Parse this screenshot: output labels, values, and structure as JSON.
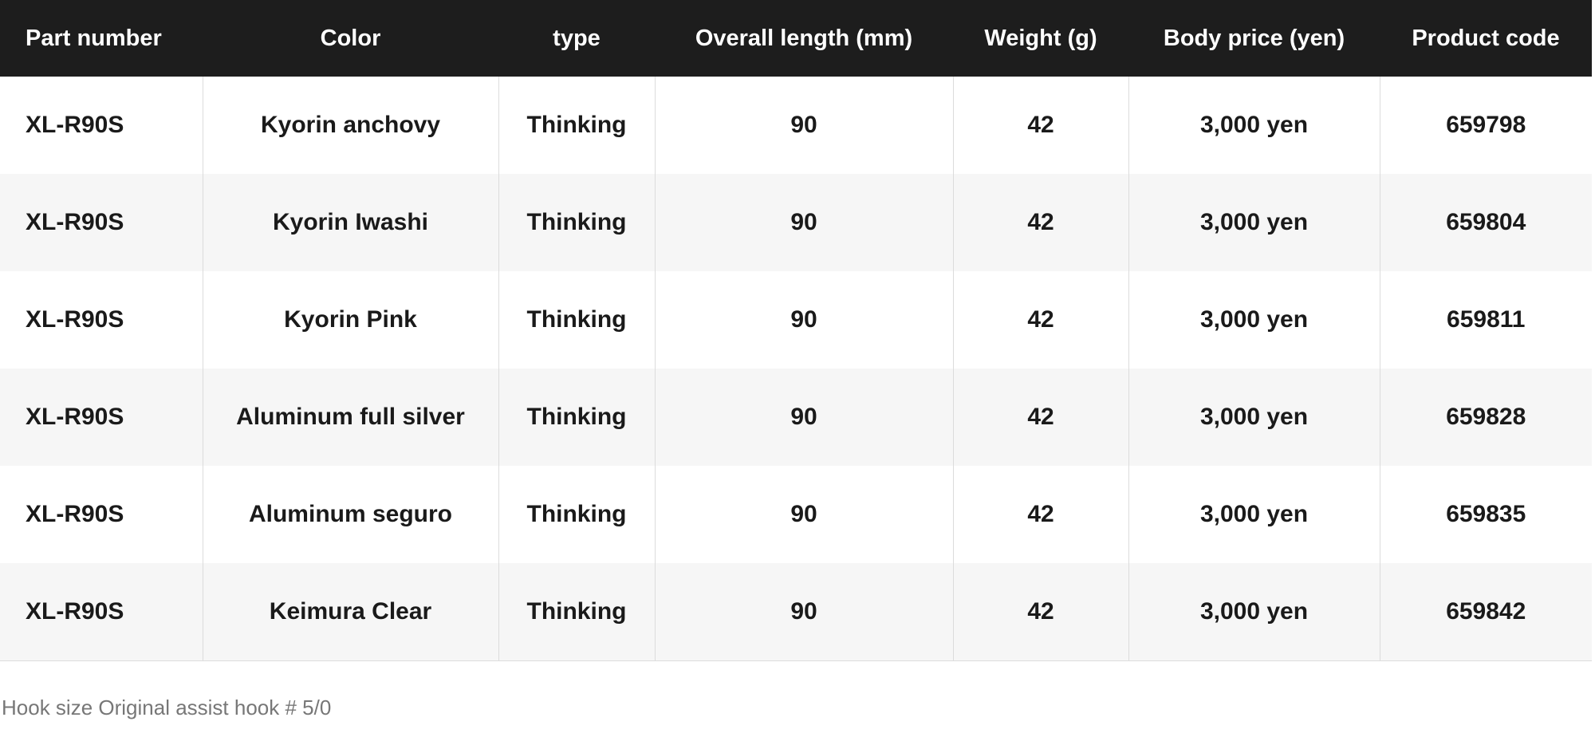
{
  "table": {
    "headers": [
      "Part number",
      "Color",
      "type",
      "Overall length (mm)",
      "Weight (g)",
      "Body price (yen)",
      "Product code"
    ],
    "rows": [
      [
        "XL-R90S",
        "Kyorin anchovy",
        "Thinking",
        "90",
        "42",
        "3,000 yen",
        "659798"
      ],
      [
        "XL-R90S",
        "Kyorin Iwashi",
        "Thinking",
        "90",
        "42",
        "3,000 yen",
        "659804"
      ],
      [
        "XL-R90S",
        "Kyorin Pink",
        "Thinking",
        "90",
        "42",
        "3,000 yen",
        "659811"
      ],
      [
        "XL-R90S",
        "Aluminum full silver",
        "Thinking",
        "90",
        "42",
        "3,000 yen",
        "659828"
      ],
      [
        "XL-R90S",
        "Aluminum seguro",
        "Thinking",
        "90",
        "42",
        "3,000 yen",
        "659835"
      ],
      [
        "XL-R90S",
        "Keimura Clear",
        "Thinking",
        "90",
        "42",
        "3,000 yen",
        "659842"
      ]
    ]
  },
  "footnote": "Hook size Original assist hook # 5/0",
  "colors": {
    "header_bg": "#1d1d1d",
    "header_text": "#ffffff",
    "stripe": "#f6f6f6",
    "note_text": "#777777"
  }
}
